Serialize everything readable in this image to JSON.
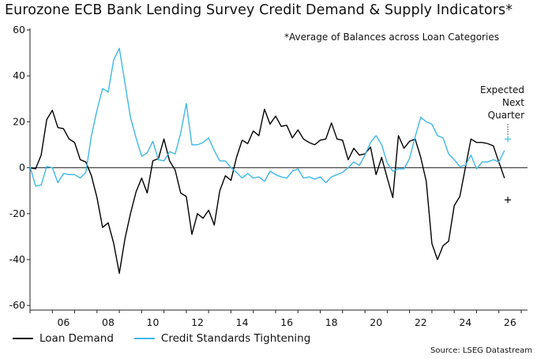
{
  "title": "Eurozone ECB Bank Lending Survey Credit Demand & Supply Indicators*",
  "annotation_note": "*Average of Balances across Loan Categories",
  "expected_label": [
    "Expected",
    "Next",
    "Quarter"
  ],
  "source": "Source: LSEG Datastream",
  "legend": [
    {
      "label": "Loan Demand",
      "color": "#000000"
    },
    {
      "label": "Credit Standards Tightening",
      "color": "#3fb8e8"
    }
  ],
  "chart_data": {
    "type": "line",
    "title": "Eurozone ECB Bank Lending Survey Credit Demand & Supply Indicators*",
    "xlim": [
      2005.0,
      2027.0
    ],
    "ylim": [
      -62,
      60
    ],
    "yticks": [
      -60,
      -40,
      -20,
      0,
      20,
      40,
      60
    ],
    "xticks": [
      2006,
      2008,
      2010,
      2012,
      2014,
      2016,
      2018,
      2020,
      2022,
      2024,
      2026
    ],
    "xtick_labels": [
      "06",
      "08",
      "10",
      "12",
      "14",
      "16",
      "18",
      "20",
      "22",
      "24",
      "26"
    ],
    "ytick_labels": [
      "-60",
      "-40",
      "-20",
      "0",
      "20",
      "40",
      "60"
    ],
    "zero_line": true,
    "grid": false,
    "x_start": 2005.0,
    "x_step": 0.25,
    "series": [
      {
        "name": "Loan Demand",
        "color": "#000000",
        "values": [
          0.0,
          -0.5,
          5.5,
          21.0,
          25.0,
          17.5,
          17.0,
          12.5,
          11.0,
          3.5,
          2.5,
          -3.5,
          -13.0,
          -26.0,
          -24.0,
          -33.0,
          -46.0,
          -31.0,
          -20.0,
          -10.5,
          -4.5,
          -11.0,
          3.0,
          4.0,
          12.5,
          3.0,
          -1.0,
          -11.0,
          -12.5,
          -29.0,
          -20.0,
          -22.0,
          -18.5,
          -25.0,
          -10.0,
          -3.5,
          -5.5,
          4.5,
          12.0,
          10.5,
          16.0,
          14.0,
          25.5,
          19.0,
          22.5,
          18.0,
          18.5,
          13.0,
          16.5,
          12.5,
          11.0,
          10.0,
          12.0,
          12.5,
          19.5,
          12.5,
          12.0,
          3.5,
          8.5,
          5.5,
          6.0,
          9.0,
          -3.0,
          4.5,
          -4.5,
          -13.0,
          14.0,
          8.5,
          11.5,
          12.5,
          4.5,
          -6.0,
          -33.0,
          -40.0,
          -34.0,
          -32.0,
          -16.5,
          -12.5,
          0.0,
          12.5,
          11.0,
          11.0,
          10.5,
          9.5,
          2.5,
          -4.5
        ]
      },
      {
        "name": "Credit Standards Tightening",
        "color": "#3fb8e8",
        "values": [
          0.5,
          -8.0,
          -7.5,
          0.5,
          0.0,
          -6.5,
          -2.5,
          -3.0,
          -3.0,
          -4.5,
          -2.0,
          14.0,
          25.0,
          34.5,
          33.0,
          47.0,
          52.0,
          37.0,
          22.0,
          13.0,
          5.0,
          6.5,
          11.5,
          3.5,
          3.0,
          7.0,
          6.0,
          15.0,
          28.0,
          10.0,
          10.0,
          11.0,
          13.0,
          7.5,
          3.0,
          3.0,
          0.0,
          -2.0,
          -4.5,
          -2.5,
          -4.5,
          -4.0,
          -6.0,
          -1.5,
          -3.0,
          -4.0,
          -4.5,
          -1.5,
          -0.5,
          -4.5,
          -4.0,
          -5.0,
          -4.0,
          -6.5,
          -4.0,
          -3.0,
          -2.0,
          0.0,
          2.5,
          1.0,
          5.5,
          11.0,
          14.0,
          10.0,
          2.0,
          -1.5,
          -0.5,
          -0.5,
          4.0,
          13.5,
          22.0,
          20.0,
          19.0,
          14.0,
          13.0,
          6.0,
          3.5,
          0.5,
          1.0,
          5.5,
          -0.5,
          2.5,
          2.5,
          3.5,
          2.5,
          7.5
        ]
      }
    ],
    "expected_markers": [
      {
        "series": "Loan Demand",
        "x": 2026.4,
        "y": -14,
        "symbol": "+"
      },
      {
        "series": "Credit Standards Tightening",
        "x": 2026.4,
        "y": 12.5,
        "symbol": "+"
      }
    ]
  }
}
